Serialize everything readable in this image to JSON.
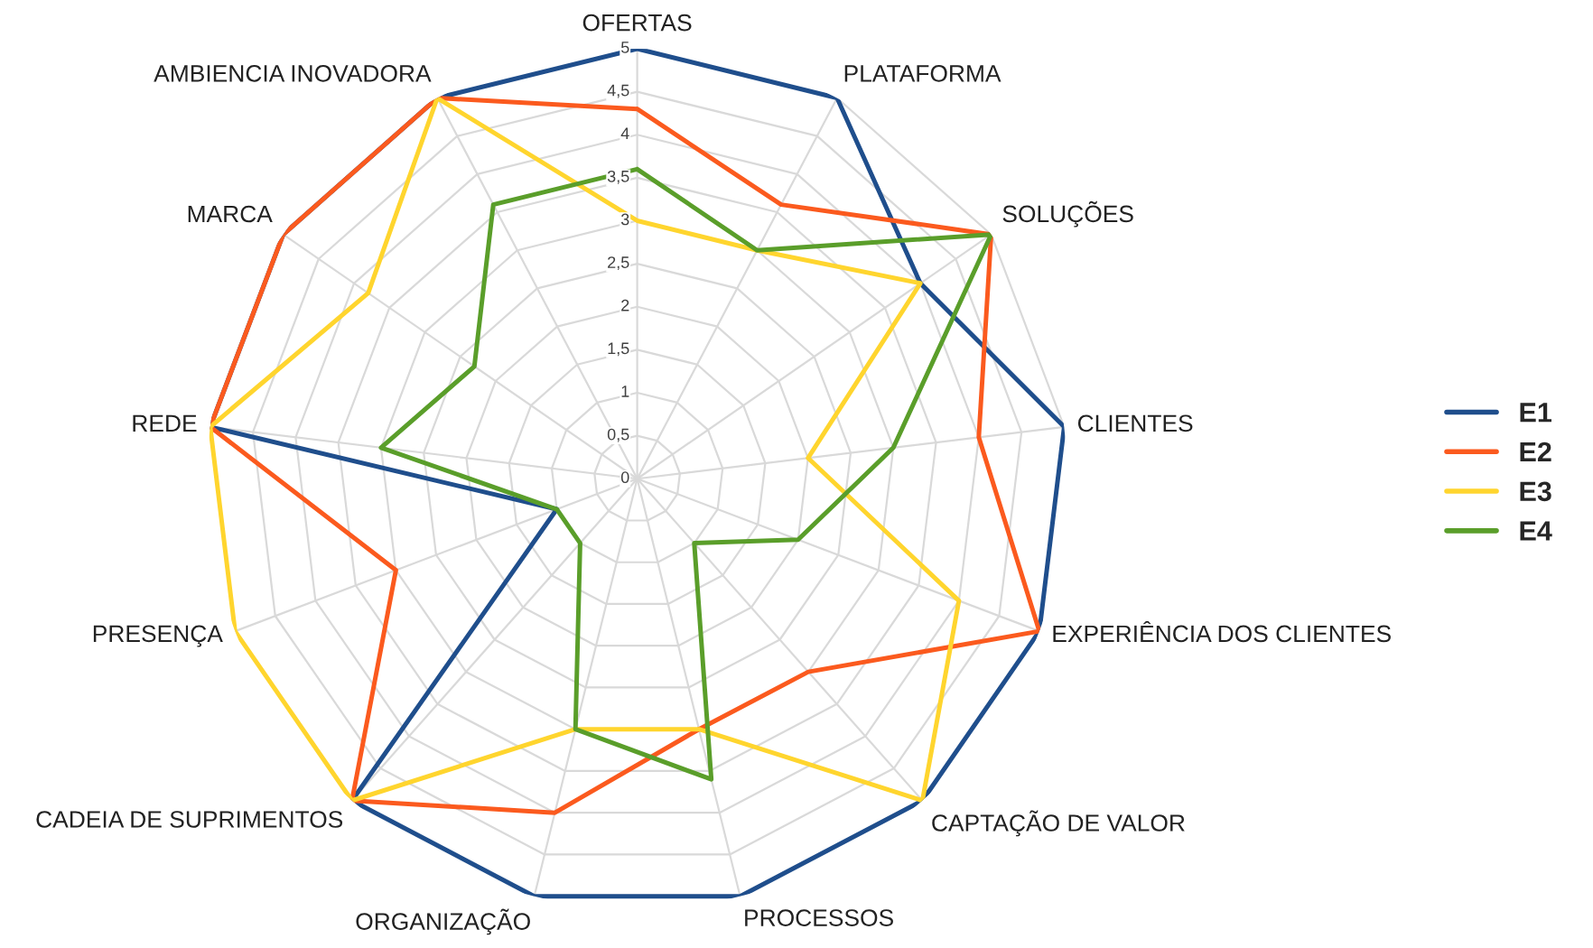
{
  "chart_data": {
    "type": "radar",
    "categories": [
      "OFERTAS",
      "PLATAFORMA",
      "SOLUÇÕES",
      "CLIENTES",
      "EXPERIÊNCIA DOS CLIENTES",
      "CAPTAÇÃO DE VALOR",
      "PROCESSOS",
      "ORGANIZAÇÃO",
      "CADEIA DE SUPRIMENTOS",
      "PRESENÇA",
      "REDE",
      "MARCA",
      "AMBIENCIA INOVADORA"
    ],
    "series": [
      {
        "name": "E1",
        "color": "#1f4e8c",
        "values": [
          5,
          5,
          4,
          5,
          5,
          5,
          5,
          5,
          5,
          1,
          5,
          5,
          5
        ]
      },
      {
        "name": "E2",
        "color": "#fb5a1e",
        "values": [
          4.3,
          3.6,
          5,
          4,
          5,
          3,
          3,
          4,
          5,
          3,
          5,
          5,
          5
        ]
      },
      {
        "name": "E3",
        "color": "#ffd52e",
        "values": [
          3,
          3,
          4,
          2,
          4,
          5,
          3,
          3,
          5,
          5,
          5,
          3.8,
          5
        ]
      },
      {
        "name": "E4",
        "color": "#5a9e2a",
        "values": [
          3.6,
          3,
          5,
          3,
          2,
          1,
          3.6,
          3,
          1,
          1,
          3,
          2.3,
          3.6
        ]
      }
    ],
    "ylim": [
      0,
      5
    ],
    "yticks": [
      0,
      {
        "value": 0.5,
        "label": "0,5"
      },
      1,
      {
        "value": 1.5,
        "label": "1,5"
      },
      2,
      {
        "value": 2.5,
        "label": "2,5"
      },
      3,
      {
        "value": 3.5,
        "label": "3,5"
      },
      4,
      {
        "value": 4.5,
        "label": "4,5"
      },
      5
    ],
    "grid": true,
    "legend": "right"
  }
}
